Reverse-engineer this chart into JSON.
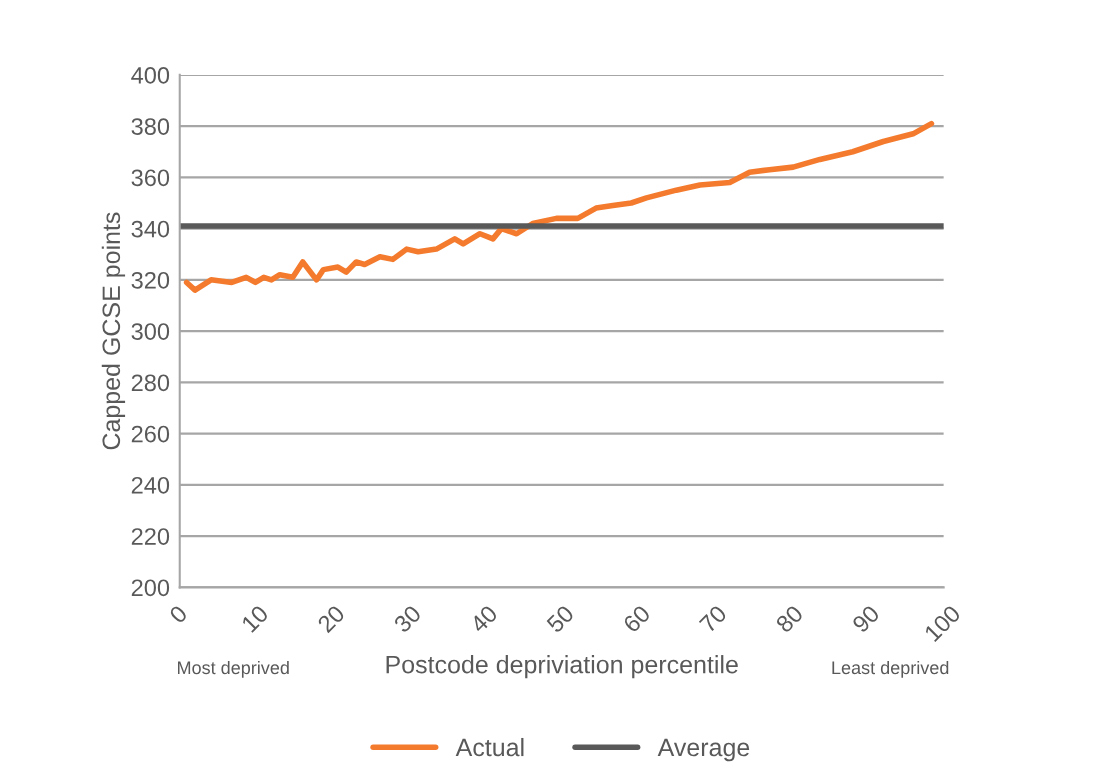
{
  "chart_data": {
    "type": "line",
    "xlabel": "Postcode depriviation percentile",
    "ylabel": "Capped GCSE points",
    "series": [
      {
        "name": "Actual",
        "color": "#f47b2e",
        "x": [
          0.9,
          2.0,
          4.1,
          6.8,
          8.7,
          9.9,
          11.0,
          12.0,
          13.1,
          14.8,
          16.1,
          17.9,
          18.8,
          20.7,
          21.8,
          23.1,
          24.2,
          26.2,
          27.9,
          29.7,
          31.2,
          33.6,
          36.0,
          37.1,
          39.3,
          41.0,
          42.1,
          44.1,
          46.2,
          49.3,
          52.1,
          54.5,
          56.7,
          59.1,
          61.1,
          65.0,
          68.1,
          72.0,
          74.6,
          77.2,
          80.3,
          83.8,
          88.1,
          92.1,
          96.0,
          98.4
        ],
        "values": [
          319,
          316,
          320,
          319,
          321,
          319,
          321,
          320,
          322,
          321,
          327,
          320,
          324,
          325,
          323,
          327,
          326,
          329,
          328,
          332,
          331,
          332,
          336,
          334,
          338,
          336,
          340,
          338,
          342,
          344,
          344,
          348,
          349,
          350,
          352,
          355,
          357,
          358,
          362,
          363,
          364,
          367,
          370,
          374,
          377,
          381
        ]
      },
      {
        "name": "Average",
        "color": "#595959",
        "x": [
          0,
          100
        ],
        "values": [
          341,
          341
        ]
      }
    ],
    "xlim": [
      0,
      100
    ],
    "xticks": [
      0,
      10,
      20,
      30,
      40,
      50,
      60,
      70,
      80,
      90,
      100
    ],
    "ylim": [
      200,
      400
    ],
    "yticks": [
      200,
      220,
      240,
      260,
      280,
      300,
      320,
      340,
      360,
      380,
      400
    ],
    "grid": "y",
    "legend": "bottom",
    "marker": "none",
    "line_style": "solid",
    "annotations": [
      "Most deprived",
      "Least deprived"
    ]
  }
}
